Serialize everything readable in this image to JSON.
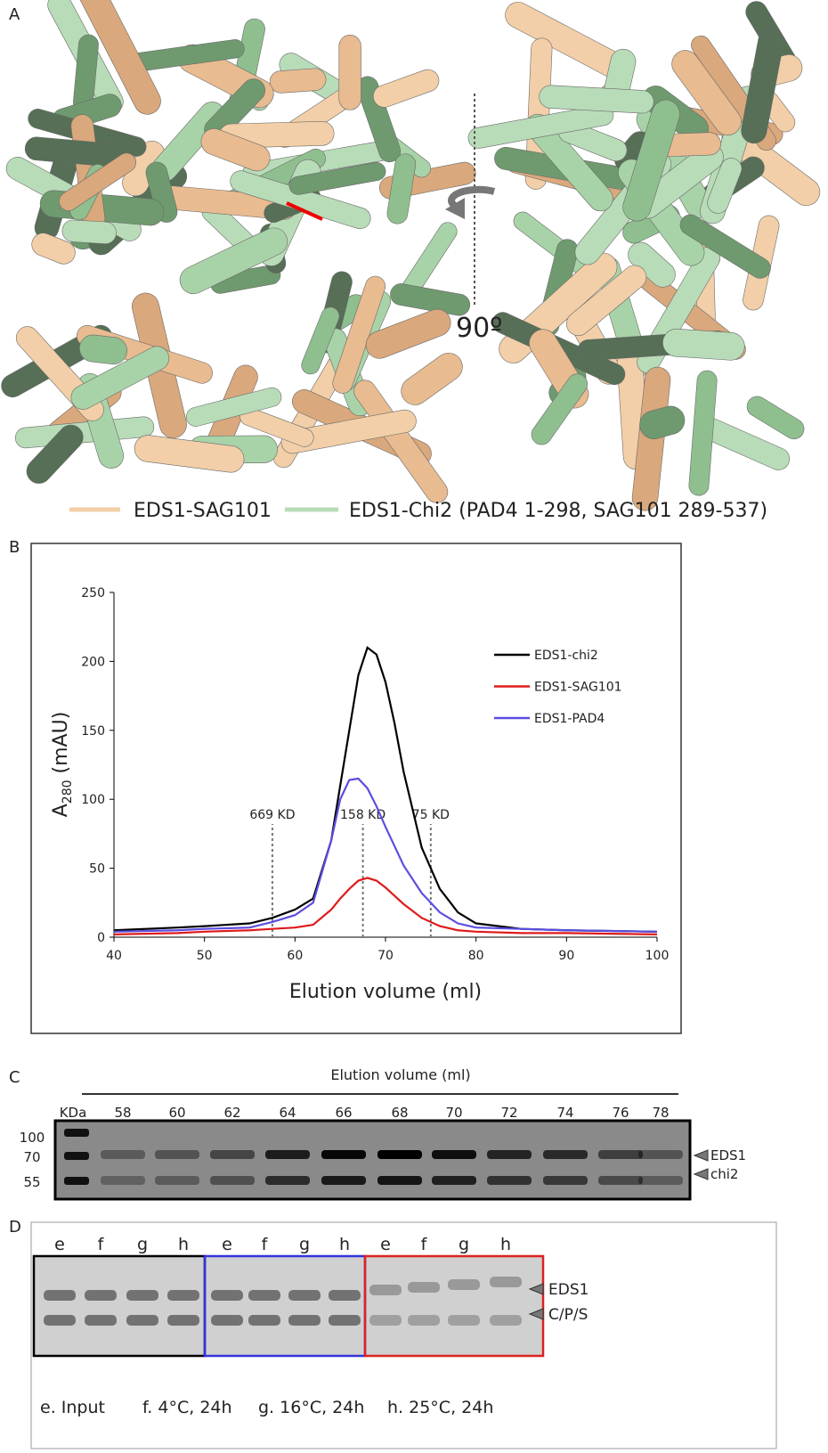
{
  "panels": {
    "a": "A",
    "b": "B",
    "c": "C",
    "d": "D"
  },
  "panel_a": {
    "rotation_label": "90º",
    "legend": [
      "EDS1-SAG101",
      "EDS1-Chi2 (PAD4 1-298, SAG101 289-537)"
    ]
  },
  "chart_data": {
    "type": "line",
    "xlabel": "Elution volume (ml)",
    "ylabel": [
      "A",
      "280",
      " (mAU)"
    ],
    "x": [
      40,
      47,
      50,
      55,
      57.5,
      60,
      62,
      64,
      65,
      66,
      67,
      68,
      69,
      70,
      71,
      72,
      74,
      76,
      78,
      80,
      85,
      90,
      100
    ],
    "series": [
      {
        "name": "EDS1-chi2",
        "color": "#000000",
        "values": [
          5,
          7,
          8,
          10,
          14,
          20,
          28,
          70,
          110,
          150,
          190,
          210,
          205,
          185,
          155,
          120,
          65,
          35,
          18,
          10,
          6,
          5,
          4
        ]
      },
      {
        "name": "EDS1-SAG101",
        "color": "#e01b1b",
        "values": [
          2,
          3,
          4,
          5,
          6,
          7,
          9,
          20,
          28,
          35,
          41,
          43,
          41,
          36,
          30,
          24,
          14,
          8,
          5,
          4,
          3,
          3,
          2
        ]
      },
      {
        "name": "EDS1-PAD4",
        "color": "#5b4de0",
        "values": [
          4,
          5,
          6,
          7,
          11,
          16,
          25,
          70,
          100,
          114,
          115,
          108,
          95,
          80,
          66,
          52,
          32,
          18,
          10,
          7,
          6,
          5,
          4
        ]
      }
    ],
    "markers": [
      {
        "x": 57.5,
        "label": "669 KD"
      },
      {
        "x": 67.5,
        "label": "158 KD"
      },
      {
        "x": 75,
        "label": "75 KD"
      }
    ],
    "xlim": [
      40,
      100
    ],
    "xticks": [
      40,
      50,
      60,
      70,
      80,
      90,
      100
    ],
    "ylim": [
      0,
      250
    ],
    "yticks": [
      0,
      50,
      100,
      150,
      200,
      250
    ]
  },
  "panel_c": {
    "title": "Elution volume (ml)",
    "ladder_label": "KDa",
    "lanes": [
      "58",
      "60",
      "62",
      "64",
      "66",
      "68",
      "70",
      "72",
      "74",
      "76",
      "78"
    ],
    "ladder": [
      "100",
      "70",
      "55"
    ],
    "bands": [
      "EDS1",
      "chi2"
    ]
  },
  "panel_d": {
    "lanes": [
      "e",
      "f",
      "g",
      "h",
      "e",
      "f",
      "g",
      "h",
      "e",
      "f",
      "g",
      "h"
    ],
    "bands": [
      "EDS1",
      "C/P/S"
    ],
    "legend": [
      "e. Input",
      "f. 4°C, 24h",
      "g. 16°C, 24h",
      "h. 25°C, 24h"
    ]
  }
}
